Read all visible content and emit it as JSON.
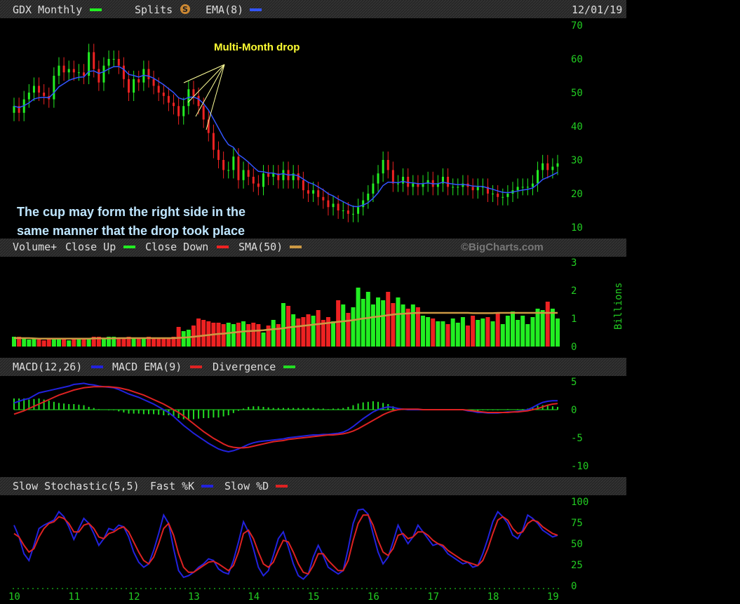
{
  "header": {
    "symbol_label": "GDX Monthly",
    "splits_label": "Splits",
    "splits_icon": "S",
    "ema_label": "EMA(8)",
    "date": "12/01/19"
  },
  "colors": {
    "up": "#22ee22",
    "down": "#ee2222",
    "ema": "#3355ff",
    "sma": "#cc9944",
    "macd": "#2222dd",
    "signal": "#dd2222",
    "divergence": "#22dd22",
    "stoch_k": "#2222dd",
    "stoch_d": "#dd2222",
    "axis_text": "#22cc22",
    "annotation_yellow": "#ffff33",
    "annotation_blue": "#bfe6ff"
  },
  "annotations": {
    "drop": "Multi-Month drop",
    "cup_line1": "The cup may form the right side in the",
    "cup_line2": "same manner that the drop took place"
  },
  "watermark": "©BigCharts.com",
  "volume_header": {
    "label": "Volume+",
    "close_up": "Close Up",
    "close_down": "Close Down",
    "sma": "SMA(50)",
    "unit": "Billions"
  },
  "macd_header": {
    "macd": "MACD(12,26)",
    "ema": "MACD EMA(9)",
    "divergence": "Divergence"
  },
  "stoch_header": {
    "label": "Slow Stochastic(5,5)",
    "fast": "Fast %K",
    "slow": "Slow %D"
  },
  "chart_data": [
    {
      "type": "candlestick",
      "title": "GDX Monthly",
      "x_tick_labels": [
        "10",
        "11",
        "12",
        "13",
        "14",
        "15",
        "16",
        "17",
        "18",
        "19"
      ],
      "ylim": [
        10,
        70
      ],
      "y_ticks": [
        70,
        60,
        50,
        40,
        30,
        20,
        10
      ],
      "start": "2010-01",
      "closes": [
        46,
        44,
        48,
        50,
        52,
        50,
        49,
        48,
        55,
        58,
        56,
        57,
        56,
        56,
        55,
        62,
        57,
        53,
        58,
        60,
        60,
        58,
        54,
        50,
        54,
        53,
        57,
        54,
        52,
        50,
        49,
        47,
        46,
        43,
        46,
        51,
        49,
        46,
        42,
        38,
        33,
        30,
        27,
        27,
        31,
        24,
        27,
        25,
        23,
        22,
        26,
        25,
        26,
        24,
        27,
        24,
        26,
        24,
        21,
        20,
        21,
        19,
        18,
        16,
        17,
        15,
        15,
        14,
        14,
        16,
        18,
        20,
        23,
        26,
        30,
        27,
        23,
        23,
        25,
        22,
        23,
        22,
        23,
        24,
        22,
        23,
        25,
        22,
        22,
        22,
        23,
        22,
        21,
        22,
        22,
        20,
        20,
        19,
        19,
        20,
        21,
        22,
        22,
        22,
        23,
        27,
        29,
        27,
        28,
        29
      ]
    },
    {
      "type": "bar",
      "title": "Volume+",
      "unit": "Billions",
      "ylim": [
        0,
        3
      ],
      "y_ticks": [
        3,
        2,
        1,
        0
      ],
      "values": [
        0.35,
        0.35,
        0.3,
        0.25,
        0.3,
        0.25,
        0.22,
        0.25,
        0.25,
        0.25,
        0.25,
        0.22,
        0.25,
        0.25,
        0.28,
        0.3,
        0.35,
        0.35,
        0.3,
        0.35,
        0.35,
        0.3,
        0.3,
        0.35,
        0.3,
        0.3,
        0.3,
        0.35,
        0.3,
        0.3,
        0.3,
        0.3,
        0.35,
        0.7,
        0.55,
        0.6,
        0.75,
        1.0,
        0.95,
        0.9,
        0.85,
        0.85,
        0.8,
        0.85,
        0.8,
        0.85,
        0.9,
        0.8,
        0.85,
        0.8,
        0.5,
        0.75,
        0.95,
        0.8,
        1.55,
        1.45,
        1.15,
        1.0,
        1.05,
        1.15,
        1.1,
        1.3,
        0.95,
        1.05,
        0.9,
        1.65,
        1.5,
        1.2,
        1.4,
        2.1,
        1.7,
        1.95,
        1.5,
        1.75,
        1.65,
        1.95,
        1.55,
        1.75,
        1.5,
        1.35,
        1.5,
        1.4,
        1.1,
        1.05,
        1.0,
        0.9,
        0.9,
        0.8,
        1.0,
        0.85,
        1.05,
        0.75,
        1.1,
        0.95,
        1.0,
        1.05,
        0.9,
        1.2,
        0.8,
        1.1,
        1.25,
        0.95,
        1.1,
        0.8,
        1.05,
        1.35,
        1.3,
        1.6,
        1.35,
        1.0
      ],
      "sma_50": [
        0.3,
        0.3,
        0.3,
        0.3,
        0.29,
        0.28,
        0.28,
        0.28,
        0.28,
        0.28,
        0.28,
        0.28,
        0.28,
        0.28,
        0.28,
        0.28,
        0.29,
        0.29,
        0.29,
        0.29,
        0.29,
        0.3,
        0.3,
        0.3,
        0.3,
        0.3,
        0.3,
        0.3,
        0.3,
        0.3,
        0.3,
        0.3,
        0.3,
        0.31,
        0.32,
        0.33,
        0.35,
        0.37,
        0.39,
        0.41,
        0.43,
        0.45,
        0.46,
        0.48,
        0.5,
        0.52,
        0.54,
        0.55,
        0.56,
        0.57,
        0.58,
        0.6,
        0.62,
        0.63,
        0.65,
        0.68,
        0.7,
        0.72,
        0.74,
        0.76,
        0.78,
        0.8,
        0.82,
        0.84,
        0.86,
        0.88,
        0.9,
        0.92,
        0.94,
        0.97,
        1.0,
        1.02,
        1.05,
        1.07,
        1.09,
        1.12,
        1.14,
        1.16,
        1.17,
        1.18,
        1.19,
        1.2,
        1.2,
        1.2,
        1.2,
        1.2,
        1.2,
        1.2,
        1.2,
        1.2,
        1.2,
        1.2,
        1.19,
        1.19,
        1.19,
        1.19,
        1.19,
        1.2,
        1.2,
        1.2,
        1.2,
        1.2,
        1.2,
        1.2,
        1.2,
        1.2,
        1.2,
        1.2,
        1.2,
        1.2
      ]
    },
    {
      "type": "line",
      "title": "MACD(12,26)",
      "ylim": [
        -10,
        5
      ],
      "y_ticks": [
        5,
        0,
        -5,
        -10
      ],
      "series": [
        {
          "name": "MACD(12,26)",
          "values": [
            1.2,
            1.5,
            1.8,
            2.0,
            2.5,
            3.0,
            3.2,
            3.4,
            3.6,
            3.8,
            4.0,
            4.2,
            4.5,
            4.6,
            4.7,
            4.5,
            4.4,
            4.2,
            4.1,
            4.0,
            3.9,
            3.6,
            3.2,
            2.8,
            2.5,
            2.2,
            1.8,
            1.4,
            1.0,
            0.5,
            0.0,
            -0.5,
            -1.2,
            -2.0,
            -2.8,
            -3.5,
            -4.2,
            -4.8,
            -5.4,
            -6.0,
            -6.5,
            -7.0,
            -7.3,
            -7.5,
            -7.3,
            -7.0,
            -6.6,
            -6.2,
            -5.9,
            -5.7,
            -5.6,
            -5.5,
            -5.4,
            -5.3,
            -5.2,
            -5.0,
            -4.9,
            -4.8,
            -4.7,
            -4.6,
            -4.5,
            -4.5,
            -4.4,
            -4.4,
            -4.3,
            -4.2,
            -4.0,
            -3.6,
            -3.0,
            -2.3,
            -1.6,
            -1.0,
            -0.4,
            0.0,
            0.3,
            0.5,
            0.4,
            0.2,
            0.1,
            0.0,
            0.0,
            0.0,
            0.0,
            0.0,
            0.0,
            0.0,
            0.0,
            0.0,
            0.0,
            0.0,
            0.0,
            -0.2,
            -0.3,
            -0.5,
            -0.5,
            -0.6,
            -0.6,
            -0.6,
            -0.5,
            -0.4,
            -0.4,
            -0.3,
            -0.2,
            0.0,
            0.4,
            0.9,
            1.3,
            1.5,
            1.6,
            1.6
          ]
        },
        {
          "name": "MACD EMA(9)",
          "values": [
            -0.8,
            -0.5,
            -0.2,
            0.2,
            0.6,
            1.0,
            1.4,
            1.8,
            2.2,
            2.6,
            2.9,
            3.2,
            3.5,
            3.7,
            3.9,
            4.0,
            4.1,
            4.1,
            4.1,
            4.1,
            4.0,
            3.9,
            3.7,
            3.5,
            3.2,
            2.9,
            2.6,
            2.2,
            1.8,
            1.4,
            1.0,
            0.5,
            0.0,
            -0.5,
            -1.1,
            -1.8,
            -2.5,
            -3.2,
            -3.9,
            -4.5,
            -5.1,
            -5.6,
            -6.1,
            -6.5,
            -6.7,
            -6.8,
            -6.8,
            -6.7,
            -6.5,
            -6.3,
            -6.1,
            -5.9,
            -5.7,
            -5.6,
            -5.5,
            -5.3,
            -5.2,
            -5.1,
            -5.0,
            -4.9,
            -4.8,
            -4.7,
            -4.6,
            -4.5,
            -4.5,
            -4.4,
            -4.3,
            -4.1,
            -3.8,
            -3.4,
            -2.9,
            -2.4,
            -1.9,
            -1.4,
            -0.9,
            -0.5,
            -0.2,
            0.0,
            0.1,
            0.1,
            0.1,
            0.1,
            0.0,
            0.0,
            0.0,
            0.0,
            0.0,
            0.0,
            0.0,
            0.0,
            0.0,
            -0.1,
            -0.2,
            -0.3,
            -0.4,
            -0.5,
            -0.5,
            -0.5,
            -0.5,
            -0.5,
            -0.4,
            -0.4,
            -0.3,
            -0.2,
            0.0,
            0.2,
            0.5,
            0.8,
            1.0,
            1.1
          ]
        }
      ]
    },
    {
      "type": "line",
      "title": "Slow Stochastic(5,5)",
      "ylim": [
        0,
        100
      ],
      "y_ticks": [
        100,
        75,
        50,
        25,
        0
      ],
      "series": [
        {
          "name": "Fast %K",
          "values": [
            72,
            58,
            38,
            30,
            48,
            68,
            72,
            75,
            78,
            88,
            82,
            70,
            55,
            68,
            80,
            74,
            62,
            48,
            56,
            68,
            66,
            72,
            70,
            58,
            40,
            28,
            22,
            26,
            42,
            62,
            84,
            74,
            44,
            18,
            10,
            12,
            16,
            22,
            26,
            32,
            30,
            20,
            16,
            14,
            30,
            52,
            76,
            64,
            44,
            22,
            12,
            18,
            36,
            56,
            64,
            46,
            26,
            12,
            8,
            14,
            34,
            48,
            36,
            22,
            18,
            14,
            18,
            44,
            74,
            90,
            91,
            85,
            62,
            40,
            26,
            34,
            52,
            72,
            60,
            50,
            58,
            72,
            64,
            56,
            48,
            50,
            46,
            38,
            34,
            30,
            26,
            28,
            22,
            24,
            38,
            56,
            76,
            88,
            82,
            74,
            60,
            56,
            66,
            84,
            80,
            74,
            66,
            62,
            58,
            60
          ]
        },
        {
          "name": "Slow %D",
          "values": [
            62,
            58,
            48,
            40,
            44,
            58,
            68,
            74,
            76,
            82,
            80,
            74,
            64,
            64,
            72,
            74,
            68,
            58,
            56,
            62,
            64,
            68,
            70,
            64,
            52,
            40,
            30,
            26,
            34,
            50,
            68,
            74,
            60,
            38,
            22,
            16,
            16,
            20,
            24,
            28,
            29,
            26,
            22,
            18,
            24,
            40,
            62,
            66,
            56,
            40,
            26,
            22,
            28,
            42,
            54,
            52,
            40,
            26,
            16,
            14,
            24,
            38,
            38,
            30,
            24,
            18,
            18,
            30,
            54,
            74,
            84,
            84,
            72,
            54,
            40,
            36,
            44,
            60,
            62,
            56,
            58,
            64,
            64,
            60,
            54,
            50,
            48,
            42,
            38,
            34,
            30,
            28,
            26,
            24,
            30,
            44,
            62,
            78,
            82,
            78,
            68,
            62,
            64,
            74,
            78,
            76,
            70,
            66,
            62,
            60
          ]
        }
      ]
    }
  ]
}
